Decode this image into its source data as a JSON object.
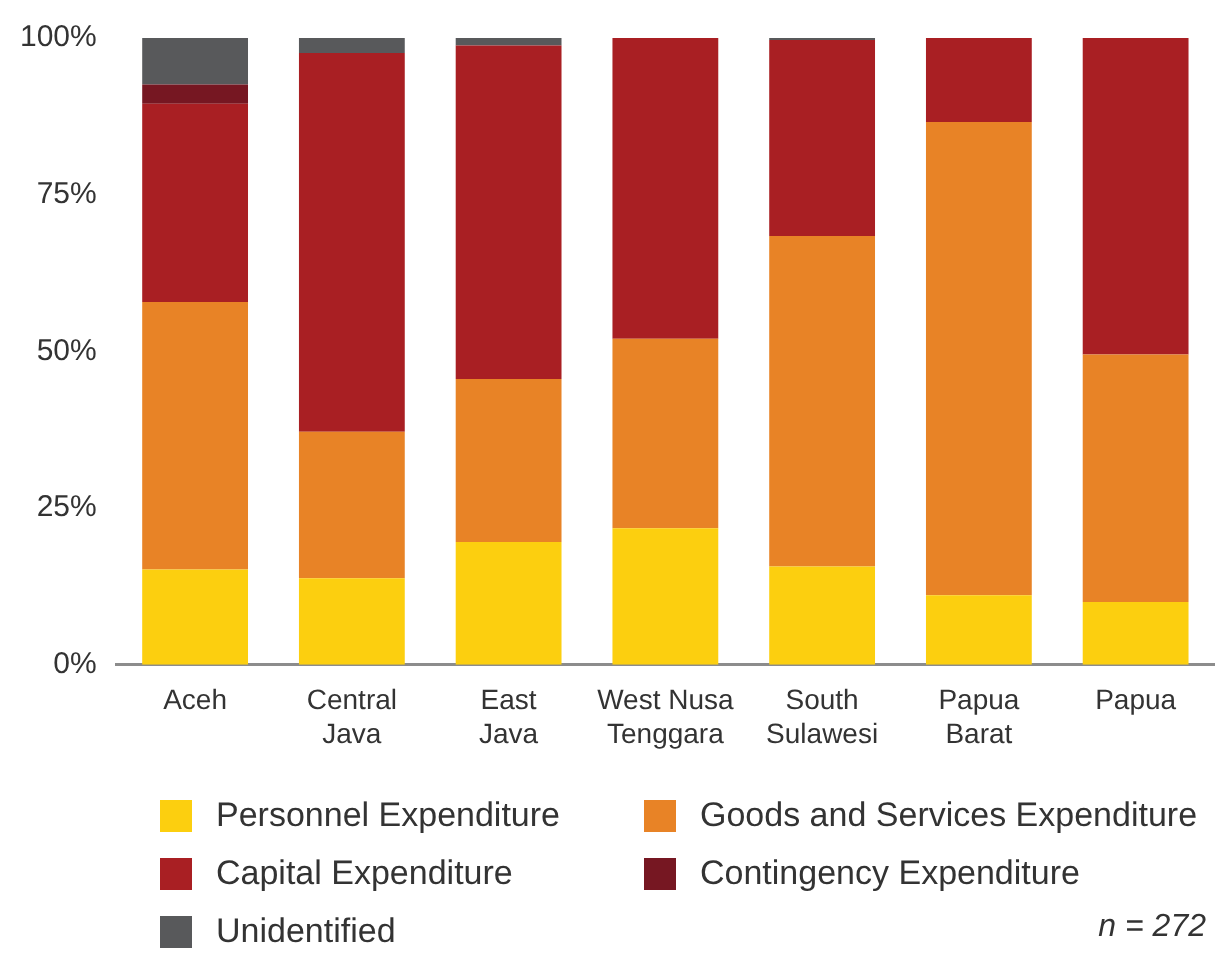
{
  "chart_data": {
    "type": "bar",
    "stacked": true,
    "categories": [
      "Aceh",
      "Central Java",
      "East Java",
      "West Nusa Tenggara",
      "South Sulawesi",
      "Papua Barat",
      "Papua"
    ],
    "series": [
      {
        "name": "Personnel Expenditure",
        "color": "#fccf0f",
        "values": [
          15.2,
          13.8,
          19.6,
          21.8,
          15.7,
          11.1,
          10.0
        ]
      },
      {
        "name": "Goods and Services Expenditure",
        "color": "#e88326",
        "values": [
          42.7,
          23.4,
          26.0,
          30.2,
          52.7,
          75.5,
          39.5
        ]
      },
      {
        "name": "Capital Expenditure",
        "color": "#a91f23",
        "values": [
          31.6,
          60.4,
          53.2,
          48.0,
          31.3,
          13.4,
          50.5
        ]
      },
      {
        "name": "Contingency Expenditure",
        "color": "#761722",
        "values": [
          3.1,
          0,
          0,
          0,
          0,
          0,
          0
        ]
      },
      {
        "name": "Unidentified",
        "color": "#58595b",
        "values": [
          7.4,
          2.4,
          1.2,
          0,
          0.3,
          0,
          0
        ]
      }
    ],
    "ylim": [
      0,
      100
    ],
    "yticks": [
      {
        "value": 0,
        "label": "0%"
      },
      {
        "value": 25,
        "label": "25%"
      },
      {
        "value": 50,
        "label": "50%"
      },
      {
        "value": 75,
        "label": "75%"
      },
      {
        "value": 100,
        "label": "100%"
      }
    ],
    "grid": false,
    "legend": "bottom",
    "annotations": [
      "n = 272"
    ]
  }
}
